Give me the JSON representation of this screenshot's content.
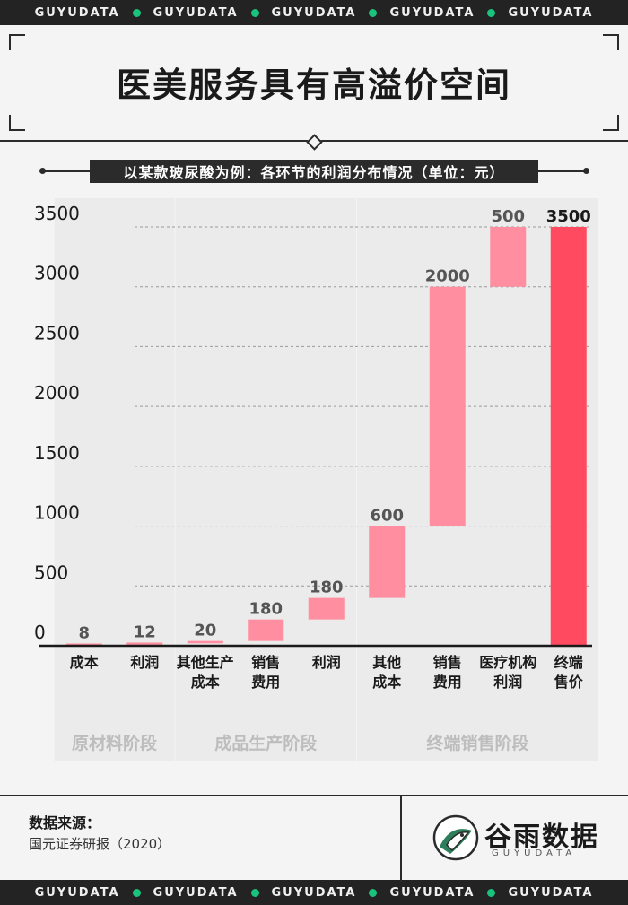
{
  "brand": {
    "strip_word": "GUYUDATA",
    "dot_color": "#19c37d",
    "logo_name": "谷雨数据",
    "logo_sub": "GUYUDATA"
  },
  "title": "医美服务具有高溢价空间",
  "subtitle": "以某款玻尿酸为例：各环节的利润分布情况（单位：元）",
  "source": {
    "label": "数据来源：",
    "text": "国元证券研报（2020）"
  },
  "chart_data": {
    "type": "bar",
    "subtype": "waterfall",
    "ylim": [
      0,
      3500
    ],
    "yticks": [
      "0",
      "500",
      "1000",
      "1500",
      "2000",
      "2500",
      "3000",
      "3500"
    ],
    "grid": true,
    "colors": {
      "step": "#ff8ea0",
      "total": "#ff4a60"
    },
    "categories": [
      {
        "label": [
          "成本"
        ],
        "base": 0,
        "value": 8,
        "value_label": "8",
        "total": false
      },
      {
        "label": [
          "利润"
        ],
        "base": 8,
        "value": 12,
        "value_label": "12",
        "total": false
      },
      {
        "label": [
          "其他生产",
          "成本"
        ],
        "base": 20,
        "value": 20,
        "value_label": "20",
        "total": false
      },
      {
        "label": [
          "销售",
          "费用"
        ],
        "base": 40,
        "value": 180,
        "value_label": "180",
        "total": false
      },
      {
        "label": [
          "利润"
        ],
        "base": 220,
        "value": 180,
        "value_label": "180",
        "total": false
      },
      {
        "label": [
          "其他",
          "成本"
        ],
        "base": 400,
        "value": 600,
        "value_label": "600",
        "total": false
      },
      {
        "label": [
          "销售",
          "费用"
        ],
        "base": 1000,
        "value": 2000,
        "value_label": "2000",
        "total": false
      },
      {
        "label": [
          "医疗机构",
          "利润"
        ],
        "base": 3000,
        "value": 500,
        "value_label": "500",
        "total": false
      },
      {
        "label": [
          "终端",
          "售价"
        ],
        "base": 0,
        "value": 3500,
        "value_label": "3500",
        "total": true
      }
    ],
    "stages": [
      {
        "name": "原材料阶段",
        "from": 0,
        "to": 1
      },
      {
        "name": "成品生产阶段",
        "from": 2,
        "to": 4
      },
      {
        "name": "终端销售阶段",
        "from": 5,
        "to": 8
      }
    ]
  }
}
